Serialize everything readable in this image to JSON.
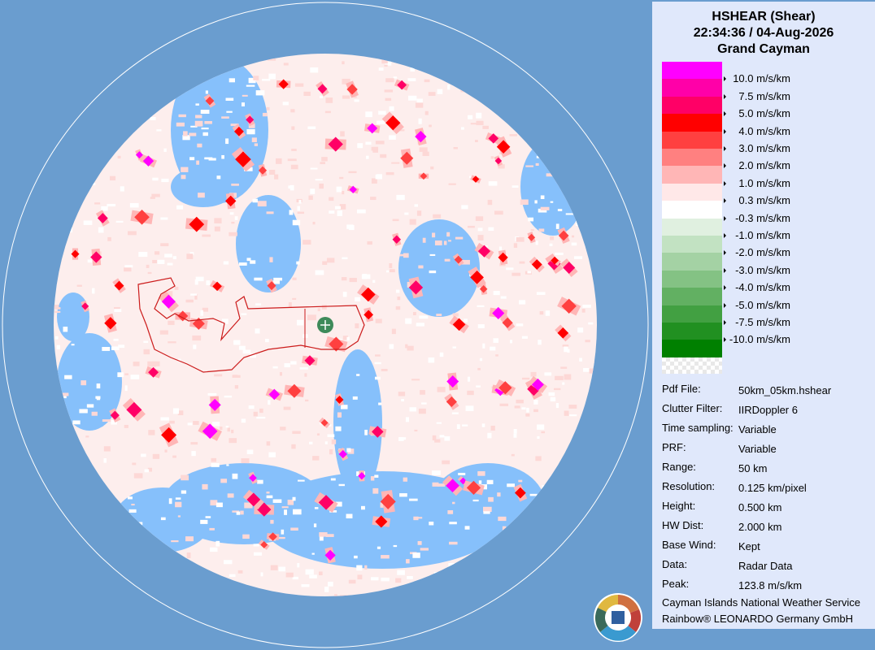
{
  "header": {
    "title": "HSHEAR (Shear)",
    "datetime": "22:34:36 / 04-Aug-2026",
    "site": "Grand Cayman"
  },
  "legend": {
    "colors": [
      "#ff00ff",
      "#ff00a8",
      "#ff0066",
      "#ff0000",
      "#ff4040",
      "#ff8080",
      "#ffb6b6",
      "#ffe8e8",
      "#ffffff",
      "#e0f0e0",
      "#c2e2c2",
      "#a4d2a4",
      "#84c284",
      "#62b062",
      "#42a042",
      "#219021",
      "#008000"
    ],
    "labels": [
      "10.0 m/s/km",
      "7.5 m/s/km",
      "5.0 m/s/km",
      "4.0 m/s/km",
      "3.0 m/s/km",
      "2.0 m/s/km",
      "1.0 m/s/km",
      "0.3 m/s/km",
      "-0.3 m/s/km",
      "-1.0 m/s/km",
      "-2.0 m/s/km",
      "-3.0 m/s/km",
      "-4.0 m/s/km",
      "-5.0 m/s/km",
      "-7.5 m/s/km",
      "-10.0 m/s/km"
    ]
  },
  "info": [
    {
      "key": "Pdf File:",
      "value": "50km_05km.hshear"
    },
    {
      "key": "Clutter Filter:",
      "value": "IIRDoppler 6"
    },
    {
      "key": "Time sampling:",
      "value": "Variable"
    },
    {
      "key": "PRF:",
      "value": "Variable"
    },
    {
      "key": "Range:",
      "value": "50 km"
    },
    {
      "key": "Resolution:",
      "value": "0.125 km/pixel"
    },
    {
      "key": "Height:",
      "value": "0.500 km"
    },
    {
      "key": "HW Dist:",
      "value": "2.000 km"
    },
    {
      "key": "Base Wind:",
      "value": "Kept"
    },
    {
      "key": "Data:",
      "value": "Radar Data"
    },
    {
      "key": "Peak:",
      "value": "123.8 m/s/km"
    }
  ],
  "footer": [
    "Cayman Islands National Weather Service",
    "Rainbow® LEONARDO Germany GmbH"
  ]
}
